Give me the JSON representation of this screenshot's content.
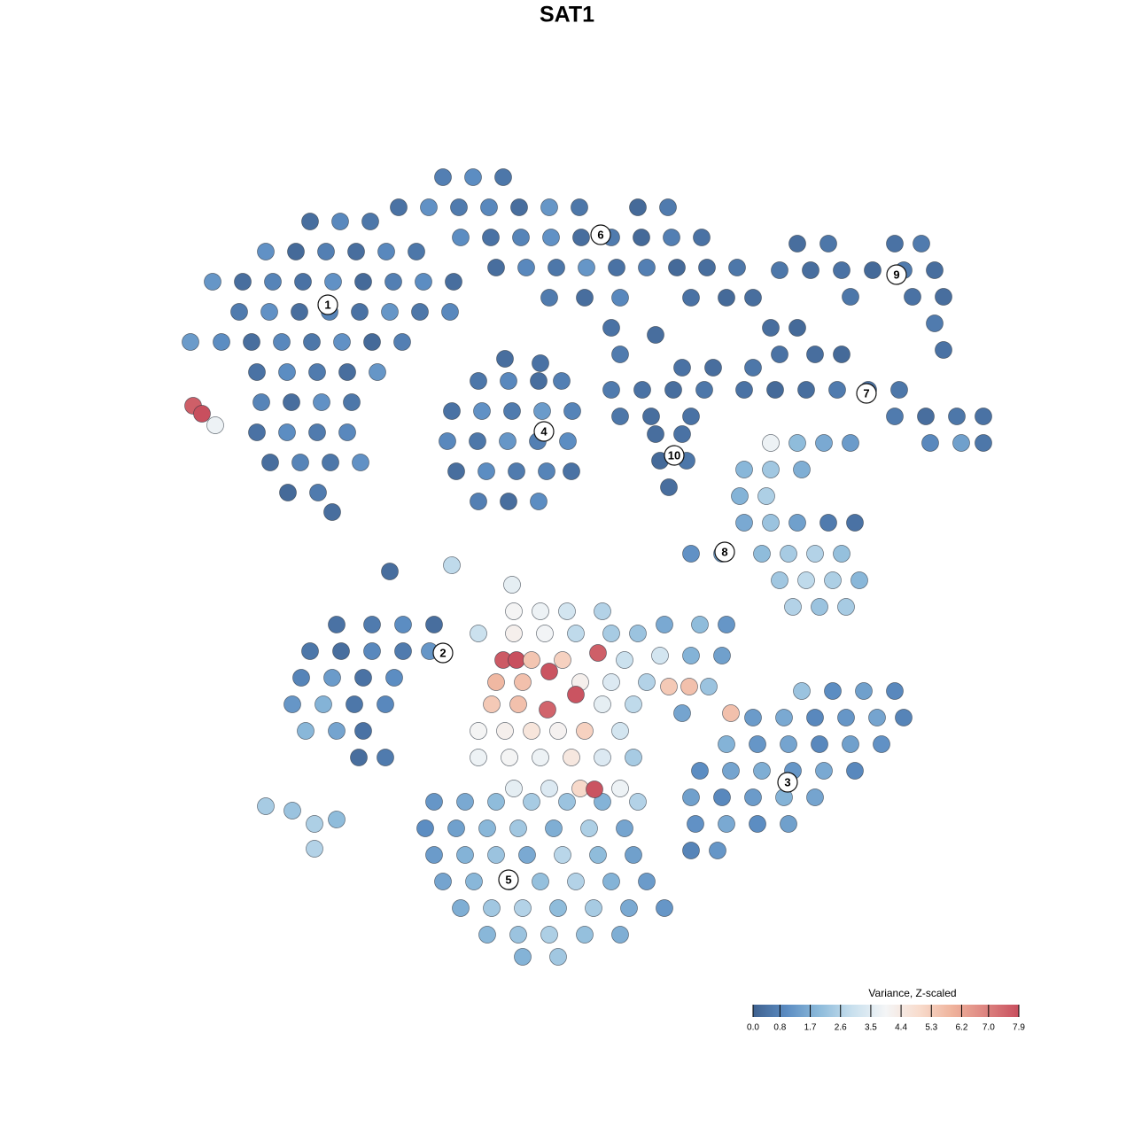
{
  "chart_data": {
    "type": "scatter",
    "title": "SAT1",
    "xlim": [
      0,
      1280
    ],
    "ylim": [
      1280,
      0
    ],
    "x": [
      350,
      384,
      418,
      300,
      334,
      368,
      402,
      436,
      470,
      240,
      274,
      308,
      342,
      376,
      410,
      444,
      478,
      512,
      270,
      304,
      338,
      372,
      406,
      440,
      474,
      508,
      215,
      250,
      284,
      318,
      352,
      386,
      420,
      454,
      290,
      324,
      358,
      392,
      426,
      295,
      329,
      363,
      397,
      290,
      324,
      358,
      392,
      305,
      339,
      373,
      407,
      325,
      359,
      375,
      218,
      228,
      243,
      500,
      534,
      568,
      450,
      484,
      518,
      552,
      586,
      620,
      654,
      720,
      754,
      520,
      554,
      588,
      622,
      656,
      690,
      724,
      758,
      792,
      560,
      594,
      628,
      662,
      696,
      730,
      764,
      798,
      832,
      620,
      660,
      700,
      780,
      820,
      850,
      870,
      900,
      880,
      920,
      950,
      540,
      574,
      608,
      634,
      510,
      544,
      578,
      612,
      646,
      505,
      539,
      573,
      607,
      641,
      515,
      549,
      583,
      617,
      645,
      540,
      574,
      608,
      570,
      610,
      690,
      700,
      740,
      900,
      935,
      1010,
      1040,
      880,
      915,
      950,
      985,
      1020,
      1055,
      960,
      1030,
      1065,
      1055,
      1065,
      770,
      805,
      850,
      690,
      725,
      760,
      795,
      840,
      875,
      910,
      945,
      980,
      1015,
      700,
      735,
      780,
      1010,
      1045,
      1080,
      1110,
      1050,
      1085,
      1110,
      740,
      770,
      745,
      775,
      755,
      870,
      900,
      930,
      960,
      840,
      870,
      905,
      835,
      865,
      840,
      870,
      900,
      935,
      965,
      780,
      815,
      860,
      890,
      920,
      950,
      880,
      910,
      940,
      970,
      895,
      925,
      955,
      380,
      420,
      455,
      490,
      350,
      385,
      420,
      455,
      485,
      340,
      375,
      410,
      445,
      330,
      365,
      400,
      435,
      345,
      380,
      410,
      405,
      435,
      905,
      940,
      975,
      1010,
      850,
      885,
      920,
      955,
      990,
      1020,
      820,
      855,
      890,
      925,
      960,
      995,
      790,
      825,
      860,
      895,
      930,
      965,
      780,
      815,
      850,
      885,
      920,
      785,
      820,
      855,
      890,
      780,
      810,
      490,
      525,
      560,
      600,
      640,
      680,
      720,
      480,
      515,
      550,
      585,
      625,
      665,
      705,
      490,
      525,
      560,
      595,
      635,
      675,
      715,
      500,
      535,
      575,
      610,
      650,
      690,
      730,
      520,
      555,
      590,
      630,
      670,
      710,
      750,
      550,
      585,
      620,
      660,
      700,
      590,
      630,
      750,
      790,
      820,
      745,
      780,
      815,
      755,
      778,
      800,
      770,
      825,
      580,
      610,
      640,
      680,
      540,
      580,
      615,
      650,
      690,
      720,
      568,
      583,
      600,
      635,
      675,
      705,
      560,
      590,
      620,
      655,
      690,
      730,
      555,
      585,
      618,
      650,
      680,
      715,
      540,
      570,
      600,
      630,
      660,
      700,
      540,
      575,
      610,
      645,
      680,
      715,
      580,
      620,
      655,
      671,
      700,
      300,
      330,
      355,
      380,
      355,
      440,
      510,
      578
    ],
    "y": [
      250,
      250,
      250,
      284,
      284,
      284,
      284,
      284,
      284,
      318,
      318,
      318,
      318,
      318,
      318,
      318,
      318,
      318,
      352,
      352,
      352,
      352,
      352,
      352,
      352,
      352,
      386,
      386,
      386,
      386,
      386,
      386,
      386,
      386,
      420,
      420,
      420,
      420,
      420,
      454,
      454,
      454,
      454,
      488,
      488,
      488,
      488,
      522,
      522,
      522,
      522,
      556,
      556,
      578,
      458,
      467,
      480,
      200,
      200,
      200,
      234,
      234,
      234,
      234,
      234,
      234,
      234,
      234,
      234,
      268,
      268,
      268,
      268,
      268,
      268,
      268,
      268,
      268,
      302,
      302,
      302,
      302,
      302,
      302,
      302,
      302,
      302,
      336,
      336,
      336,
      336,
      336,
      336,
      370,
      370,
      400,
      400,
      400,
      430,
      430,
      430,
      430,
      464,
      464,
      464,
      464,
      464,
      498,
      498,
      498,
      498,
      498,
      532,
      532,
      532,
      532,
      532,
      566,
      566,
      566,
      405,
      410,
      370,
      400,
      378,
      275,
      275,
      275,
      275,
      305,
      305,
      305,
      305,
      305,
      305,
      335,
      335,
      335,
      365,
      395,
      415,
      415,
      415,
      440,
      440,
      440,
      440,
      440,
      440,
      440,
      440,
      440,
      440,
      470,
      470,
      470,
      470,
      470,
      470,
      470,
      500,
      500,
      500,
      490,
      490,
      520,
      520,
      550,
      500,
      500,
      500,
      500,
      530,
      530,
      530,
      560,
      560,
      590,
      590,
      590,
      590,
      590,
      625,
      625,
      625,
      625,
      625,
      625,
      655,
      655,
      655,
      655,
      685,
      685,
      685,
      705,
      705,
      705,
      705,
      735,
      735,
      735,
      735,
      735,
      765,
      765,
      765,
      765,
      795,
      795,
      795,
      795,
      825,
      825,
      825,
      855,
      855,
      780,
      780,
      780,
      780,
      810,
      810,
      810,
      810,
      810,
      810,
      840,
      840,
      840,
      840,
      840,
      840,
      870,
      870,
      870,
      870,
      870,
      870,
      900,
      900,
      900,
      900,
      900,
      930,
      930,
      930,
      930,
      960,
      960,
      905,
      905,
      905,
      905,
      905,
      905,
      905,
      935,
      935,
      935,
      935,
      935,
      935,
      935,
      965,
      965,
      965,
      965,
      965,
      965,
      965,
      995,
      995,
      995,
      995,
      995,
      995,
      995,
      1025,
      1025,
      1025,
      1025,
      1025,
      1025,
      1025,
      1055,
      1055,
      1055,
      1055,
      1055,
      1080,
      1080,
      705,
      705,
      705,
      740,
      740,
      740,
      775,
      775,
      775,
      805,
      805,
      690,
      690,
      690,
      690,
      715,
      715,
      715,
      715,
      715,
      715,
      745,
      745,
      745,
      745,
      737,
      745,
      770,
      770,
      758,
      770,
      770,
      770,
      795,
      795,
      801,
      784,
      795,
      795,
      825,
      825,
      825,
      825,
      825,
      825,
      855,
      855,
      855,
      855,
      855,
      855,
      890,
      890,
      890,
      891,
      890,
      910,
      915,
      930,
      925,
      958,
      645,
      638,
      660
    ],
    "values": [
      0.3,
      0.9,
      0.5,
      1.1,
      0.2,
      0.7,
      0.3,
      0.9,
      0.5,
      1.2,
      0.3,
      0.8,
      0.4,
      1.1,
      0.2,
      0.7,
      1.0,
      0.3,
      0.6,
      1.1,
      0.3,
      0.8,
      0.4,
      1.2,
      0.5,
      0.9,
      1.3,
      1.0,
      0.3,
      0.9,
      0.5,
      1.1,
      0.2,
      0.7,
      0.4,
      1.0,
      0.6,
      0.3,
      1.2,
      0.8,
      0.3,
      1.1,
      0.5,
      0.4,
      1.0,
      0.6,
      0.9,
      0.3,
      0.8,
      0.5,
      1.1,
      0.2,
      0.6,
      0.3,
      7.6,
      7.9,
      3.8,
      0.7,
      1.0,
      0.5,
      0.4,
      1.1,
      0.6,
      0.9,
      0.3,
      1.2,
      0.5,
      0.2,
      0.6,
      1.0,
      0.4,
      0.8,
      1.1,
      0.3,
      0.6,
      0.2,
      0.7,
      0.4,
      0.3,
      0.9,
      0.5,
      1.2,
      0.4,
      0.7,
      0.2,
      0.3,
      0.5,
      0.6,
      0.3,
      0.9,
      0.4,
      0.2,
      0.3,
      0.3,
      0.2,
      0.4,
      0.3,
      0.2,
      0.5,
      0.9,
      0.3,
      0.7,
      0.4,
      1.1,
      0.6,
      1.3,
      0.8,
      0.9,
      0.5,
      1.2,
      0.7,
      1.0,
      0.3,
      1.0,
      0.6,
      0.8,
      0.4,
      0.7,
      0.3,
      1.0,
      0.3,
      0.4,
      0.4,
      0.6,
      0.3,
      0.3,
      0.5,
      0.4,
      0.6,
      0.5,
      0.3,
      0.4,
      0.2,
      0.6,
      0.3,
      0.5,
      0.4,
      0.3,
      0.6,
      0.4,
      0.4,
      0.3,
      0.5,
      0.6,
      0.4,
      0.3,
      0.5,
      0.4,
      0.2,
      0.3,
      0.6,
      0.4,
      0.5,
      0.5,
      0.3,
      0.4,
      0.6,
      0.3,
      0.5,
      0.4,
      0.9,
      1.4,
      0.5,
      0.3,
      0.4,
      0.2,
      0.5,
      0.3,
      3.8,
      2.0,
      1.6,
      1.3,
      1.9,
      2.3,
      1.7,
      1.8,
      2.5,
      1.6,
      2.2,
      1.4,
      0.6,
      0.4,
      1.1,
      1.3,
      2.0,
      2.4,
      2.6,
      2.1,
      2.3,
      2.8,
      2.5,
      1.9,
      2.6,
      2.2,
      2.4,
      0.4,
      0.6,
      1.0,
      0.3,
      0.5,
      0.3,
      0.9,
      0.6,
      1.2,
      0.8,
      1.3,
      0.4,
      1.0,
      1.2,
      1.8,
      0.5,
      0.9,
      1.9,
      1.5,
      0.4,
      0.3,
      0.6,
      2.2,
      1.0,
      1.4,
      0.9,
      1.3,
      1.6,
      0.9,
      1.2,
      1.5,
      0.8,
      1.8,
      1.2,
      1.5,
      0.9,
      1.4,
      1.1,
      1.0,
      1.5,
      1.7,
      1.2,
      1.6,
      0.9,
      1.4,
      0.9,
      1.3,
      1.8,
      1.5,
      1.1,
      1.6,
      1.0,
      1.4,
      0.8,
      1.2,
      1.2,
      1.6,
      2.0,
      2.4,
      2.2,
      1.8,
      2.6,
      1.0,
      1.4,
      1.9,
      2.3,
      1.7,
      2.5,
      1.5,
      1.3,
      1.8,
      2.2,
      1.6,
      2.7,
      2.0,
      1.4,
      1.5,
      1.9,
      2.4,
      2.1,
      2.6,
      1.8,
      1.3,
      1.7,
      2.3,
      2.6,
      2.0,
      2.4,
      1.6,
      1.2,
      1.9,
      2.2,
      2.5,
      2.1,
      1.7,
      1.8,
      2.3,
      1.6,
      2.0,
      1.2,
      3.2,
      1.8,
      1.4,
      5.4,
      5.6,
      2.2,
      1.5,
      5.6,
      4.0,
      3.8,
      3.2,
      2.6,
      3.0,
      4.2,
      3.9,
      2.8,
      2.4,
      2.2,
      7.7,
      7.9,
      5.5,
      5.2,
      7.6,
      3.0,
      5.8,
      5.6,
      7.8,
      4.2,
      3.4,
      2.6,
      5.4,
      5.6,
      7.5,
      7.8,
      3.6,
      2.8,
      4.0,
      4.2,
      4.6,
      4.1,
      5.2,
      3.2,
      3.8,
      4.0,
      3.8,
      4.5,
      3.4,
      2.4,
      3.6,
      3.4,
      5.0,
      7.8,
      3.8,
      2.4,
      2.2,
      2.5,
      2.0,
      2.6,
      0.3,
      2.8,
      3.6
    ],
    "annotations": [
      {
        "text": "1",
        "x": 370,
        "y": 344
      },
      {
        "text": "2",
        "x": 500,
        "y": 737
      },
      {
        "text": "3",
        "x": 889,
        "y": 883
      },
      {
        "text": "4",
        "x": 614,
        "y": 487
      },
      {
        "text": "5",
        "x": 574,
        "y": 993
      },
      {
        "text": "6",
        "x": 678,
        "y": 265
      },
      {
        "text": "7",
        "x": 978,
        "y": 444
      },
      {
        "text": "8",
        "x": 818,
        "y": 623
      },
      {
        "text": "9",
        "x": 1012,
        "y": 310
      },
      {
        "text": "10",
        "x": 761,
        "y": 514
      }
    ],
    "colormap": [
      "#3f618f",
      "#5b8cc2",
      "#8dbbdb",
      "#c9e0ee",
      "#f4f5f6",
      "#f8dccd",
      "#efb39c",
      "#dd8480",
      "#c84f5e"
    ],
    "clim": [
      0,
      7.9
    ],
    "colorbar": {
      "title": "Variance, Z-scaled",
      "ticks": [
        {
          "value": 0,
          "label": "0.0"
        },
        0.8,
        1.7,
        2.6,
        3.5,
        4.4,
        5.3,
        6.2,
        {
          "value": 7,
          "label": "7.0"
        },
        7.9
      ]
    }
  }
}
